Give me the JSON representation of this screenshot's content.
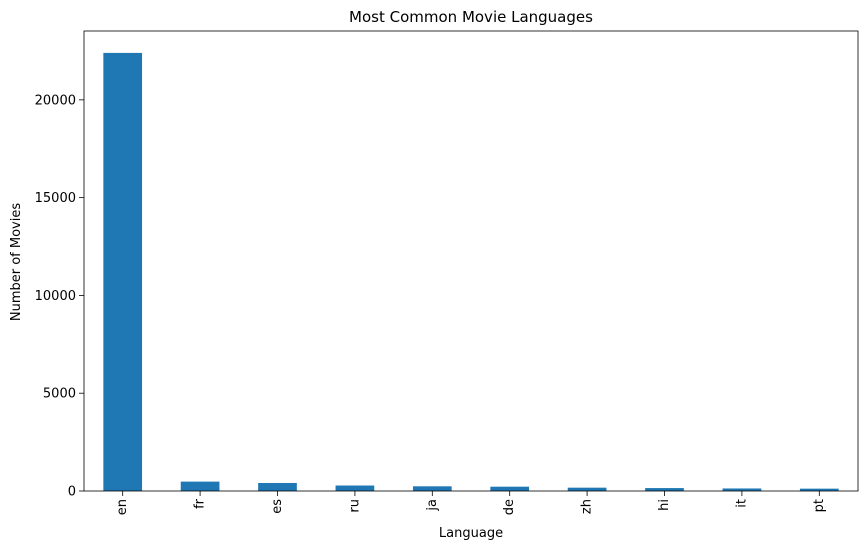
{
  "chart_data": {
    "type": "bar",
    "title": "Most Common Movie Languages",
    "xlabel": "Language",
    "ylabel": "Number of Movies",
    "categories": [
      "en",
      "fr",
      "es",
      "ru",
      "ja",
      "de",
      "zh",
      "hi",
      "it",
      "pt"
    ],
    "values": [
      22400,
      480,
      410,
      280,
      240,
      220,
      170,
      150,
      130,
      120
    ],
    "ylim": [
      0,
      23520
    ],
    "yticks": [
      0,
      5000,
      10000,
      15000,
      20000
    ],
    "ytick_labels": [
      "0",
      "5000",
      "10000",
      "15000",
      "20000"
    ],
    "grid": false,
    "legend": "none",
    "bar_color": "#1f77b4"
  }
}
